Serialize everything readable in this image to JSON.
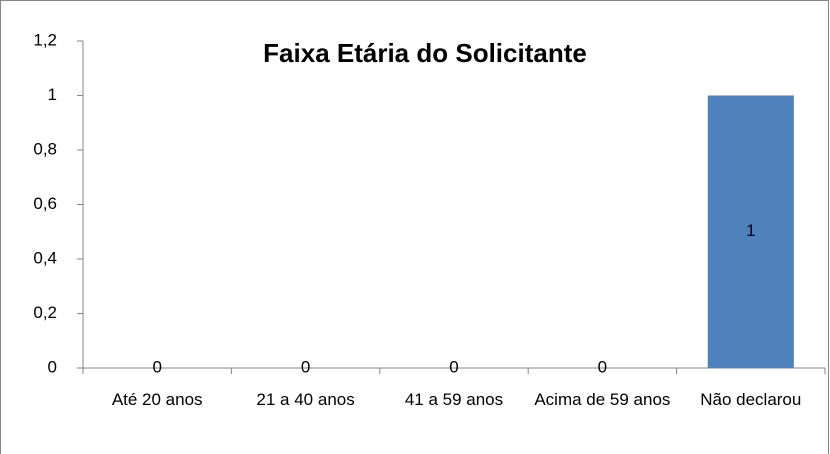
{
  "chart_data": {
    "type": "bar",
    "title": "Faixa Etária do Solicitante",
    "categories": [
      "Até 20 anos",
      "21 a 40 anos",
      "41 a 59 anos",
      "Acima de 59 anos",
      "Não declarou"
    ],
    "values": [
      0,
      0,
      0,
      0,
      1
    ],
    "color": "#4f81bd",
    "ylim": [
      0,
      1.2
    ],
    "yticks": [
      0,
      {
        "value": 0.2,
        "label": "0,2"
      },
      {
        "value": 0.4,
        "label": "0,4"
      },
      {
        "value": 0.6,
        "label": "0,6"
      },
      {
        "value": 0.8,
        "label": "0,8"
      },
      1,
      {
        "value": 1.2,
        "label": "1,2"
      }
    ],
    "grid": false
  }
}
